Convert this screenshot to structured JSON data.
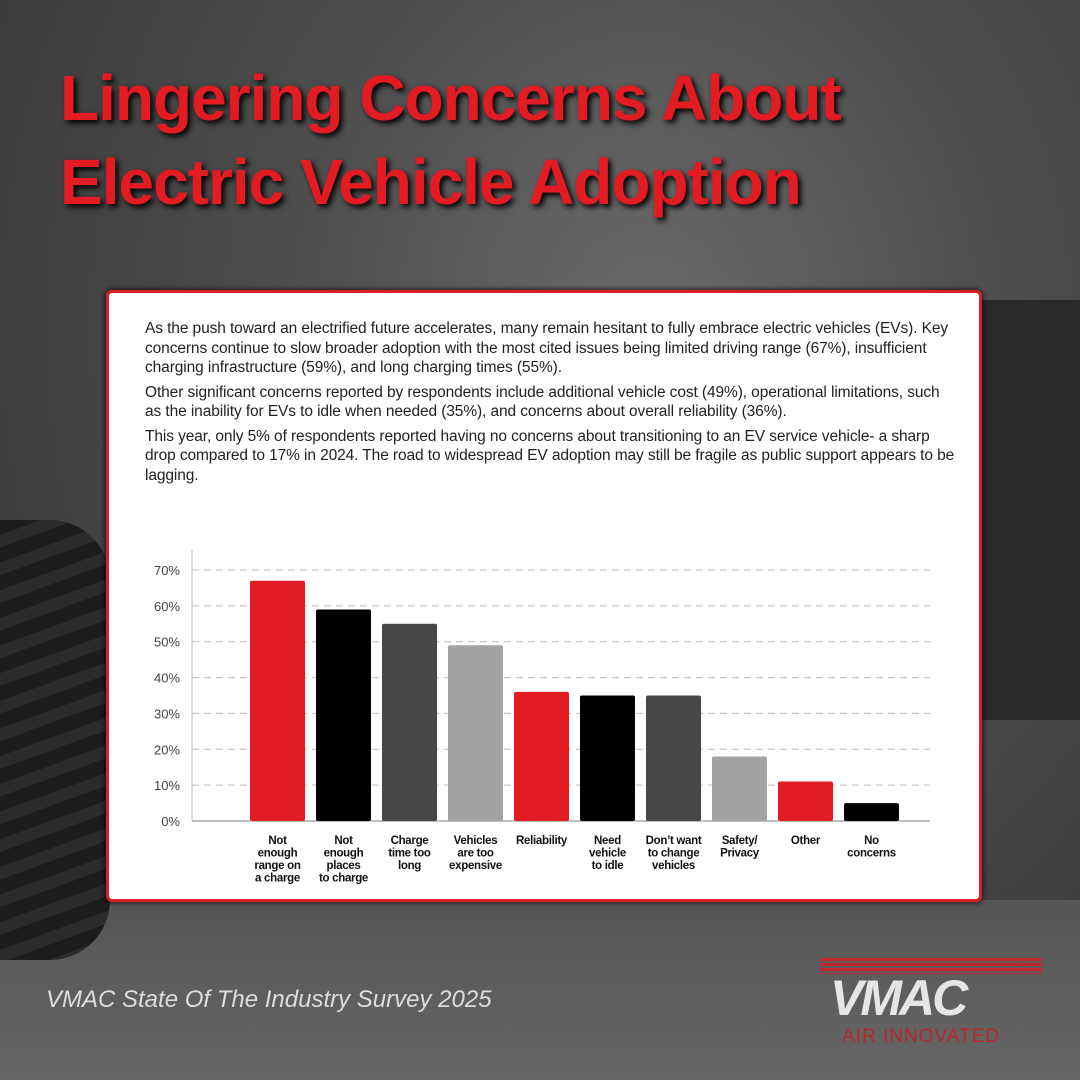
{
  "title_line1": "Lingering Concerns About",
  "title_line2": "Electric Vehicle Adoption",
  "paragraphs": [
    "As the push toward an electrified future accelerates, many remain hesitant to fully embrace electric vehicles (EVs). Key concerns continue to slow broader adoption with the most cited issues being limited driving range (67%), insufficient charging infrastructure (59%), and long charging times (55%).",
    "Other significant concerns reported by respondents include additional vehicle cost (49%), operational limitations, such as the inability for EVs to idle when needed (35%), and concerns about overall reliability (36%).",
    "This year, only 5% of respondents reported having no concerns about transitioning to an EV service vehicle- a sharp drop compared to 17% in 2024. The road to widespread EV adoption may still be fragile as public support appears to be lagging."
  ],
  "footer": "VMAC State Of The Industry Survey 2025",
  "logo": {
    "word": "VMAC",
    "tagline": "AIR INNOVATED"
  },
  "colors": {
    "red": "#e31b23",
    "black": "#000000",
    "dark_gray": "#474747",
    "light_gray": "#a3a3a3"
  },
  "chart_data": {
    "type": "bar",
    "categories": [
      [
        "Not",
        "enough",
        "range on",
        "a charge"
      ],
      [
        "Not",
        "enough",
        "places",
        "to charge"
      ],
      [
        "Charge",
        "time too",
        "long"
      ],
      [
        "Vehicles",
        "are too",
        "expensive"
      ],
      [
        "Reliability"
      ],
      [
        "Need",
        "vehicle",
        "to idle"
      ],
      [
        "Don’t want",
        "to change",
        "vehicles"
      ],
      [
        "Safety/",
        "Privacy"
      ],
      [
        "Other"
      ],
      [
        "No",
        "concerns"
      ]
    ],
    "values": [
      67,
      59,
      55,
      49,
      36,
      35,
      35,
      18,
      11,
      5
    ],
    "bar_colors": [
      "#e31b23",
      "#000000",
      "#474747",
      "#a3a3a3",
      "#e31b23",
      "#000000",
      "#474747",
      "#a3a3a3",
      "#e31b23",
      "#000000"
    ],
    "yticks": [
      "0%",
      "10%",
      "20%",
      "30%",
      "40%",
      "50%",
      "60%",
      "70%"
    ],
    "ylim": [
      0,
      70
    ],
    "grid": true
  }
}
